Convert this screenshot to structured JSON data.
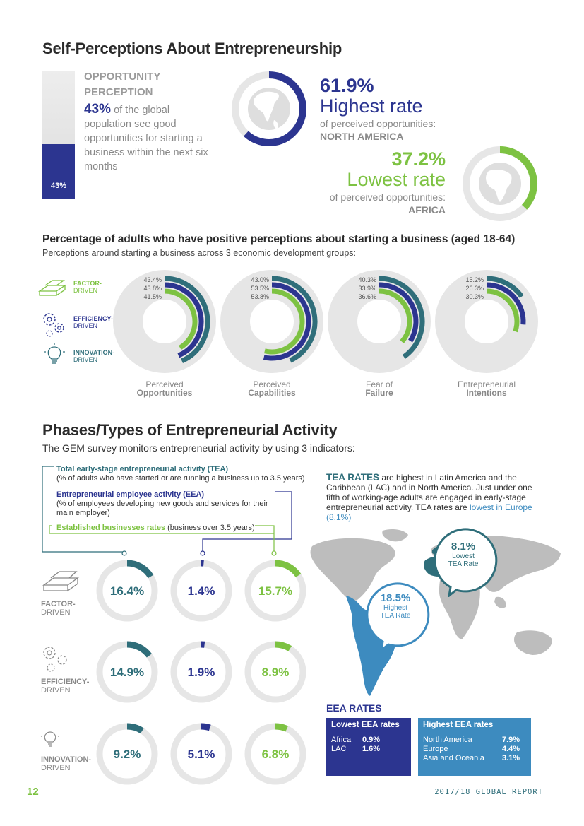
{
  "section1": {
    "title": "Self-Perceptions About Entrepreneurship",
    "opp_title_1": "OPPORTUNITY",
    "opp_title_2": "PERCEPTION",
    "opp_pct": "43%",
    "opp_text": "of the global population see good opportunities for starting a business within the next six months",
    "bar_label": "43%",
    "bar_value": 0.43,
    "high_value": "61.9%",
    "high_label": "Highest rate",
    "high_sub": "of perceived opportunities:",
    "high_region": "NORTH AMERICA",
    "low_value": "37.2%",
    "low_label": "Lowest rate",
    "low_sub": "of perceived opportunities:",
    "low_region": "AFRICA"
  },
  "section2": {
    "title": "Percentage of adults who have positive perceptions about starting a business (aged 18-64)",
    "subtitle": "Perceptions around starting a business across 3 economic development groups:",
    "legend": [
      {
        "line1": "FACTOR-",
        "line2": "DRIVEN",
        "icon": "gold-bars-icon"
      },
      {
        "line1": "EFFICIENCY-",
        "line2": "DRIVEN",
        "icon": "gears-icon"
      },
      {
        "line1": "INNOVATION-",
        "line2": "DRIVEN",
        "icon": "lightbulb-icon"
      }
    ]
  },
  "section3": {
    "title": "Phases/Types of Entrepreneurial Activity",
    "subtitle": "The GEM survey monitors entrepreneurial activity by using 3 indicators:",
    "tea_title": "Total early-stage entrepreneurial activity (TEA)",
    "tea_desc": "(% of adults who have started or are running a business up to 3.5 years)",
    "eea_title": "Entrepreneurial employee activity (EEA)",
    "eea_desc_1": "(% of employees developing new goods and services for their",
    "eea_desc_2": "main employer)",
    "est_title": "Established businesses rates",
    "est_desc": "(business over 3.5 years)",
    "rows": [
      {
        "line1": "FACTOR-",
        "line2": "DRIVEN"
      },
      {
        "line1": "EFFICIENCY-",
        "line2": "DRIVEN"
      },
      {
        "line1": "INNOVATION-",
        "line2": "DRIVEN"
      }
    ],
    "tea_rates_head": "TEA RATES",
    "tea_rates_text": "are highest in Latin America and the Caribbean (LAC) and in North America. Just under one fifth of working-age adults are engaged in early-stage entrepreneurial activity. TEA rates are",
    "tea_rates_low": "lowest in Europe (8.1%)",
    "map_low_value": "8.1%",
    "map_low_l1": "Lowest",
    "map_low_l2": "TEA Rate",
    "map_high_value": "18.5%",
    "map_high_l1": "Highest",
    "map_high_l2": "TEA Rate",
    "eea_rates_title": "EEA RATES",
    "eea_low_title": "Lowest EEA rates",
    "eea_low_rows": [
      [
        "Africa",
        "0.9%"
      ],
      [
        "LAC",
        "1.6%"
      ]
    ],
    "eea_high_title": "Highest EEA rates",
    "eea_high_rows": [
      [
        "North America",
        "7.9%"
      ],
      [
        "Europe",
        "4.4%"
      ],
      [
        "Asia and Oceania",
        "3.1%"
      ]
    ]
  },
  "footer": {
    "page_number": "12",
    "report": "2017/18 GLOBAL REPORT"
  },
  "colors": {
    "navy": "#2c3590",
    "teal": "#2f6e7a",
    "green": "#7dc242",
    "lightgray": "#e6e6e6",
    "lac_blue": "#3d8bbf"
  },
  "chart_data": [
    {
      "type": "radial-bar",
      "title": "Percentage of adults who have positive perceptions about starting a business (aged 18-64)",
      "series": [
        {
          "name": "Factor-driven",
          "color": "#2f6e7a"
        },
        {
          "name": "Efficiency-driven",
          "color": "#2c3590"
        },
        {
          "name": "Innovation-driven",
          "color": "#7dc242"
        }
      ],
      "categories": [
        {
          "l1": "Perceived",
          "l2": "Opportunities",
          "values": [
            43.4,
            43.8,
            41.5
          ],
          "labels": [
            "43.4%",
            "43.8%",
            "41.5%"
          ]
        },
        {
          "l1": "Perceived",
          "l2": "Capabilities",
          "values": [
            43.0,
            53.5,
            53.8
          ],
          "labels": [
            "43.0%",
            "53.5%",
            "53.8%"
          ]
        },
        {
          "l1": "Fear of",
          "l2": "Failure",
          "values": [
            40.3,
            33.9,
            36.6
          ],
          "labels": [
            "40.3%",
            "33.9%",
            "36.6%"
          ]
        },
        {
          "l1": "Entrepreneurial",
          "l2": "Intentions",
          "values": [
            15.2,
            26.3,
            30.3
          ],
          "labels": [
            "15.2%",
            "26.3%",
            "30.3%"
          ]
        }
      ]
    },
    {
      "type": "donut-grid",
      "columns": [
        "TEA",
        "EEA",
        "Established businesses rates"
      ],
      "column_colors": [
        "#2f6e7a",
        "#2c3590",
        "#7dc242"
      ],
      "rows": [
        "Factor-driven",
        "Efficiency-driven",
        "Innovation-driven"
      ],
      "values": [
        [
          16.4,
          1.4,
          15.7
        ],
        [
          14.9,
          1.9,
          8.9
        ],
        [
          9.2,
          5.1,
          6.8
        ]
      ],
      "labels": [
        [
          "16.4%",
          "1.4%",
          "15.7%"
        ],
        [
          "14.9%",
          "1.9%",
          "8.9%"
        ],
        [
          "9.2%",
          "5.1%",
          "6.8%"
        ]
      ]
    },
    {
      "type": "donut",
      "values": [
        61.9,
        37.2
      ],
      "labels": [
        "61.9%",
        "37.2%"
      ],
      "colors": [
        "#2c3590",
        "#7dc242"
      ]
    }
  ]
}
